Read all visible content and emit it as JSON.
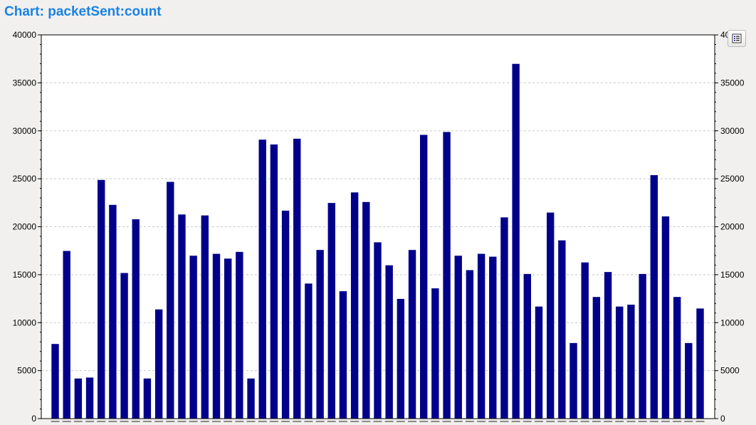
{
  "title": "Chart: packetSent:count",
  "legend_toggle": {
    "icon": "legend-list-icon"
  },
  "colors": {
    "bar": "#00008b",
    "title": "#1a82e2",
    "grid": "#c8c8c8",
    "plot_background": "#ffffff",
    "page_background": "#f1f0ef"
  },
  "chart_data": {
    "type": "bar",
    "title": "Chart: packetSent:count",
    "xlabel": "",
    "ylabel": "",
    "ylim": [
      0,
      40000
    ],
    "yticks": [
      0,
      5000,
      10000,
      15000,
      20000,
      25000,
      30000,
      35000,
      40000
    ],
    "y_axis_right_mirror": true,
    "grid": true,
    "values": [
      7800,
      17500,
      4200,
      4300,
      24900,
      22300,
      15200,
      20800,
      4200,
      11400,
      24700,
      21300,
      17000,
      21200,
      17200,
      16700,
      17400,
      4200,
      29100,
      28600,
      21700,
      29200,
      14100,
      17600,
      22500,
      13300,
      23600,
      22600,
      18400,
      16000,
      12500,
      17600,
      29600,
      13600,
      29900,
      17000,
      15500,
      17200,
      16900,
      21000,
      37000,
      15100,
      11700,
      21500,
      18600,
      7900,
      16300,
      12700,
      15300,
      11700,
      11900,
      15100,
      25400,
      21100,
      12700,
      7900,
      11500
    ]
  }
}
